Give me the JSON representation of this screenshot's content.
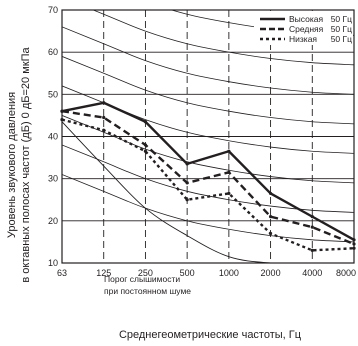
{
  "chart_data": {
    "type": "line",
    "xlabel": "Среднегеометрические частоты, Гц",
    "ylabel_line1": "Уровень звукового давления",
    "ylabel_line2": "в октавных полосах частот  (дБ) 0 дБ=20 мкПа",
    "x_categories": [
      "63",
      "125",
      "250",
      "500",
      "1000",
      "2000",
      "4000",
      "8000"
    ],
    "ylim": [
      10,
      70
    ],
    "y_ticks": [
      10,
      20,
      30,
      40,
      50,
      60,
      70
    ],
    "grid": true,
    "legend_position": "top-right",
    "series": [
      {
        "name": "Высокая",
        "unit": "50 Гц",
        "style": "solid",
        "values": [
          46,
          48,
          43.5,
          33.5,
          36.5,
          26.5,
          21,
          15.5
        ]
      },
      {
        "name": "Средняя",
        "unit": "50 Гц",
        "style": "dashed",
        "values": [
          46,
          44.5,
          38,
          29,
          31.5,
          21,
          18.5,
          14.5
        ]
      },
      {
        "name": "Низкая",
        "unit": "50 Гц",
        "style": "dotted",
        "values": [
          44,
          41.5,
          36.5,
          25,
          26.5,
          17,
          13,
          13.5
        ]
      }
    ],
    "nc_curves": [
      [
        80,
        76,
        72,
        69,
        67,
        65.5,
        64.5,
        64
      ],
      [
        73,
        69,
        65,
        62,
        60,
        58.5,
        57.5,
        57
      ],
      [
        66,
        62,
        58,
        55,
        53,
        51.5,
        50.5,
        50
      ],
      [
        59,
        55,
        51,
        48,
        46,
        44.5,
        43.5,
        43
      ],
      [
        52,
        48,
        44,
        41,
        39,
        37.5,
        36.5,
        36
      ],
      [
        45,
        41,
        37,
        34,
        32,
        30.5,
        29.5,
        29
      ],
      [
        38,
        34,
        30,
        27,
        25,
        23.5,
        22.5,
        22
      ],
      [
        31,
        27,
        23,
        20,
        18,
        16.5,
        15.5,
        15
      ]
    ],
    "threshold_curve": [
      43.5,
      33,
      23,
      16.5,
      11.5,
      10,
      10,
      10
    ],
    "annotation": [
      "Порог слышимости",
      "при постоянном шуме"
    ]
  }
}
